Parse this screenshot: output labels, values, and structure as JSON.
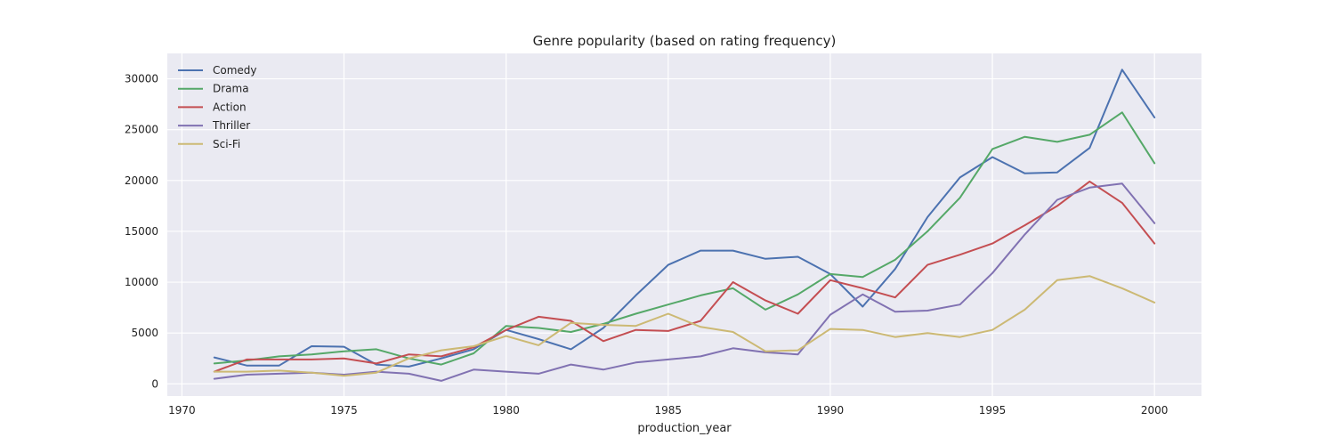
{
  "chart_data": {
    "type": "line",
    "title": "Genre popularity (based on rating frequency)",
    "xlabel": "production_year",
    "ylabel": "",
    "xlim": [
      1969.55,
      2001.45
    ],
    "ylim": [
      -1200,
      32500
    ],
    "xticks": [
      1970,
      1975,
      1980,
      1985,
      1990,
      1995,
      2000
    ],
    "yticks": [
      0,
      5000,
      10000,
      15000,
      20000,
      25000,
      30000
    ],
    "grid": true,
    "legend_position": "top-left",
    "x": [
      1971,
      1972,
      1973,
      1974,
      1975,
      1976,
      1977,
      1978,
      1979,
      1980,
      1981,
      1982,
      1983,
      1984,
      1985,
      1986,
      1987,
      1988,
      1989,
      1990,
      1991,
      1992,
      1993,
      1994,
      1995,
      1996,
      1997,
      1998,
      1999,
      2000
    ],
    "series": [
      {
        "name": "Comedy",
        "color": "#4c72b0",
        "values": [
          2600,
          1800,
          1800,
          3700,
          3650,
          1900,
          1700,
          2500,
          3400,
          5300,
          4400,
          3400,
          5500,
          8700,
          11700,
          13100,
          13100,
          12300,
          12500,
          10800,
          7600,
          11300,
          16400,
          20300,
          22300,
          20700,
          20800,
          23200,
          30900,
          26200
        ]
      },
      {
        "name": "Drama",
        "color": "#55a868",
        "values": [
          2000,
          2300,
          2700,
          2900,
          3200,
          3400,
          2500,
          1900,
          3000,
          5700,
          5500,
          5100,
          5900,
          6900,
          7800,
          8700,
          9400,
          7300,
          8800,
          10800,
          10500,
          12200,
          15000,
          18300,
          23100,
          24300,
          23800,
          24500,
          26700,
          21700
        ]
      },
      {
        "name": "Action",
        "color": "#c44e52",
        "values": [
          1200,
          2400,
          2400,
          2400,
          2500,
          2000,
          2900,
          2700,
          3600,
          5300,
          6600,
          6200,
          4200,
          5300,
          5200,
          6200,
          10000,
          8200,
          6900,
          10200,
          9400,
          8500,
          11700,
          12700,
          13800,
          15600,
          17500,
          19900,
          17800,
          13800
        ]
      },
      {
        "name": "Thriller",
        "color": "#8172b2",
        "values": [
          500,
          900,
          1000,
          1100,
          900,
          1200,
          1000,
          300,
          1400,
          1200,
          1000,
          1900,
          1400,
          2100,
          2400,
          2700,
          3500,
          3100,
          2900,
          6800,
          8800,
          7100,
          7200,
          7800,
          10900,
          14700,
          18100,
          19300,
          19700,
          15800
        ]
      },
      {
        "name": "Sci-Fi",
        "color": "#ccb974",
        "values": [
          1200,
          1200,
          1300,
          1100,
          800,
          1100,
          2500,
          3300,
          3700,
          4700,
          3800,
          6000,
          5800,
          5700,
          6900,
          5600,
          5100,
          3200,
          3300,
          5400,
          5300,
          4600,
          5000,
          4600,
          5300,
          7300,
          10200,
          10600,
          9400,
          8000
        ]
      }
    ]
  }
}
